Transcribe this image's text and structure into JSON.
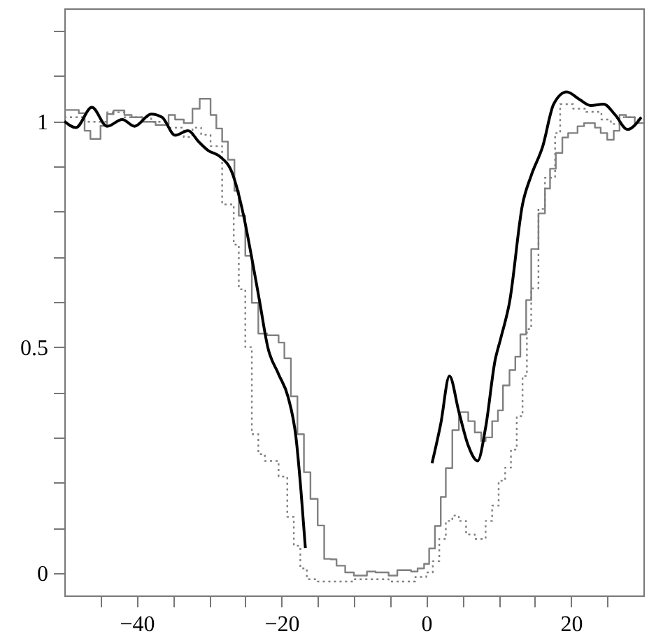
{
  "chart_data": {
    "type": "line",
    "xlim": [
      -50,
      30
    ],
    "ylim": [
      -0.05,
      1.25
    ],
    "xticks": [
      {
        "value": -45,
        "label": null
      },
      {
        "value": -40,
        "label": "−40"
      },
      {
        "value": -35,
        "label": null
      },
      {
        "value": -30,
        "label": null
      },
      {
        "value": -25,
        "label": null
      },
      {
        "value": -20,
        "label": "−20"
      },
      {
        "value": -15,
        "label": null
      },
      {
        "value": -10,
        "label": null
      },
      {
        "value": -5,
        "label": null
      },
      0,
      {
        "value": 5,
        "label": null
      },
      {
        "value": 10,
        "label": null
      },
      {
        "value": 15,
        "label": null
      },
      20,
      {
        "value": 25,
        "label": null
      }
    ],
    "yticks": [
      0,
      {
        "value": 0.1,
        "label": null
      },
      {
        "value": 0.2,
        "label": null
      },
      {
        "value": 0.3,
        "label": null
      },
      {
        "value": 0.4,
        "label": null
      },
      0.5,
      {
        "value": 0.6,
        "label": null
      },
      {
        "value": 0.7,
        "label": null
      },
      {
        "value": 0.8,
        "label": null
      },
      {
        "value": 0.9,
        "label": null
      },
      1,
      {
        "value": 1.1,
        "label": null
      },
      {
        "value": 1.2,
        "label": null
      }
    ],
    "grid": false,
    "series": [
      {
        "type": "step",
        "color": "#808080",
        "line_style": "solid",
        "x": [
          -50,
          -48.0,
          -47.2,
          -46.4,
          -45.0,
          -44.1,
          -43.2,
          -41.7,
          -40.7,
          -39.2,
          -37.4,
          -35.6,
          -34.7,
          -33.5,
          -32.3,
          -31.3,
          -29.8,
          -29.0,
          -28.2,
          -27.4,
          -26.5,
          -25.9,
          -25.0,
          -24.1,
          -23.2,
          -22.0,
          -20.4,
          -19.6,
          -18.7,
          -17.8,
          -16.9,
          -16.0,
          -15.0,
          -14.1,
          -13.2,
          -12.4,
          -11.2,
          -10.0,
          -8.2,
          -7.0,
          -5.2,
          -4.0,
          -2.1,
          -1.2,
          -0.3,
          0.4,
          1.2,
          2.0,
          2.7,
          3.6,
          4.5,
          5.8,
          6.7,
          7.6,
          8.2,
          9.1,
          9.9,
          10.6,
          11.5,
          12.3,
          13.0,
          13.8,
          14.5,
          15.5,
          16.4,
          17.1,
          17.9,
          18.8,
          19.6,
          20.9,
          21.8,
          23.3,
          24.1,
          25.0,
          25.9,
          26.7,
          27.6,
          28.8,
          30
        ],
        "values": [
          1.025,
          1.018,
          0.979,
          0.961,
          0.99,
          1.016,
          1.024,
          1.014,
          1.009,
          0.999,
          0.992,
          1.014,
          1.004,
          0.996,
          1.028,
          1.05,
          1.014,
          0.984,
          0.955,
          0.915,
          0.846,
          0.791,
          0.702,
          0.598,
          0.53,
          0.526,
          0.51,
          0.475,
          0.391,
          0.307,
          0.223,
          0.164,
          0.105,
          0.031,
          0.03,
          0.016,
          0.001,
          -0.006,
          0.003,
          0.001,
          -0.006,
          0.006,
          0.003,
          0.01,
          0.02,
          0.054,
          0.104,
          0.168,
          0.232,
          0.316,
          0.356,
          0.336,
          0.311,
          0.292,
          0.3,
          0.336,
          0.36,
          0.415,
          0.449,
          0.479,
          0.528,
          0.604,
          0.717,
          0.796,
          0.851,
          0.895,
          0.93,
          0.964,
          0.974,
          0.989,
          0.996,
          0.986,
          0.974,
          0.959,
          0.979,
          1.014,
          1.009,
          0.996,
          0.996
        ]
      },
      {
        "type": "step",
        "color": "#808080",
        "line_style": "dotted",
        "x": [
          -50,
          -47.2,
          -44.1,
          -41.7,
          -38.0,
          -35.6,
          -33.5,
          -32.3,
          -31.1,
          -29.8,
          -28.2,
          -26.6,
          -25.9,
          -25.0,
          -24.1,
          -23.2,
          -22.3,
          -20.4,
          -19.2,
          -18.3,
          -17.4,
          -16.5,
          -15.0,
          -10.0,
          -5.2,
          -1.5,
          0,
          0.9,
          1.8,
          2.7,
          3.6,
          4.5,
          5.5,
          6.7,
          8.2,
          9.1,
          10.0,
          10.9,
          11.7,
          12.5,
          13.3,
          13.9,
          14.5,
          15.5,
          16.4,
          17.8,
          18.5,
          20.3,
          22.1,
          24.2,
          25.5,
          26.7,
          28.8,
          30
        ],
        "values": [
          1.009,
          0.999,
          1.02,
          1.009,
          0.999,
          0.986,
          0.965,
          0.986,
          0.97,
          0.945,
          0.816,
          0.727,
          0.628,
          0.5,
          0.307,
          0.263,
          0.248,
          0.213,
          0.124,
          0.06,
          0.01,
          -0.014,
          -0.019,
          -0.014,
          -0.019,
          -0.009,
          0.001,
          0.026,
          0.075,
          0.115,
          0.127,
          0.115,
          0.085,
          0.075,
          0.115,
          0.149,
          0.204,
          0.233,
          0.273,
          0.347,
          0.436,
          0.54,
          0.63,
          0.806,
          0.875,
          0.974,
          1.038,
          1.028,
          1.021,
          1.004,
          0.994,
          1.009,
          1.004,
          1.004
        ]
      },
      {
        "color": "#000000",
        "line_style": "solid",
        "x": [
          -50,
          -48.4,
          -46.2,
          -44.1,
          -42.0,
          -40.3,
          -38.0,
          -36.5,
          -34.7,
          -32.9,
          -31.4,
          -30.1,
          -28.6,
          -26.8,
          -25.3,
          -24.1,
          -23.0,
          -21.9,
          -20.4,
          -19.1,
          -18.0,
          -17.3,
          -16.7,
          -8,
          0.8,
          2.0,
          3.2,
          4.5,
          5.8,
          7.1,
          8.2,
          9.5,
          10.3,
          11.5,
          13.3,
          14.5,
          16.1,
          17.6,
          19.4,
          21.2,
          22.7,
          24.5,
          26.1,
          27.8,
          29.7
        ],
        "values": [
          1.0,
          0.986,
          1.031,
          0.989,
          1.004,
          0.989,
          1.016,
          1.009,
          0.969,
          0.979,
          0.954,
          0.935,
          0.923,
          0.885,
          0.796,
          0.697,
          0.599,
          0.5,
          0.44,
          0.39,
          0.3,
          0.18,
          0.055,
          null,
          0.243,
          0.33,
          0.436,
          0.357,
          0.282,
          0.248,
          0.322,
          0.47,
          0.52,
          0.599,
          0.816,
          0.88,
          0.945,
          1.038,
          1.065,
          1.048,
          1.035,
          1.038,
          1.014,
          0.982,
          1.009
        ]
      }
    ]
  }
}
